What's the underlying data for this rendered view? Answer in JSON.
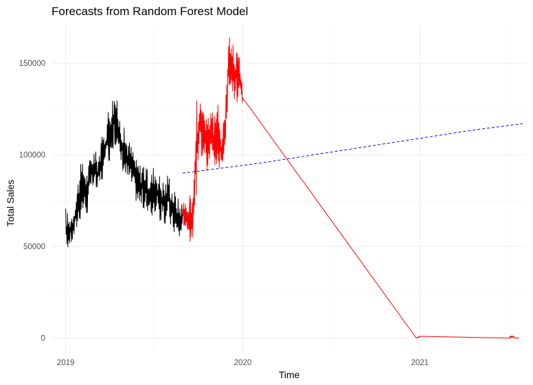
{
  "chart_data": {
    "type": "line",
    "title": "Forecasts from Random Forest Model",
    "xlabel": "Time",
    "ylabel": "Total Sales",
    "xlim": [
      2018.92,
      2021.6
    ],
    "ylim": [
      -8000,
      171000
    ],
    "x_ticks": [
      2019,
      2020,
      2021
    ],
    "x_tick_labels": [
      "2019",
      "2020",
      "2021"
    ],
    "y_ticks": [
      0,
      50000,
      100000,
      150000
    ],
    "y_tick_labels": [
      "0",
      "50000",
      "100000",
      "150000"
    ],
    "grid": true,
    "legend": "none",
    "series": [
      {
        "color": "#000000",
        "style": "solid",
        "x": [
          2019.0,
          2019.02,
          2019.04,
          2019.06,
          2019.08,
          2019.1,
          2019.12,
          2019.14,
          2019.16,
          2019.18,
          2019.2,
          2019.22,
          2019.24,
          2019.26,
          2019.28,
          2019.3,
          2019.32,
          2019.34,
          2019.36,
          2019.38,
          2019.4,
          2019.42,
          2019.44,
          2019.46,
          2019.48,
          2019.5,
          2019.52,
          2019.54,
          2019.56,
          2019.58,
          2019.6,
          2019.62,
          2019.64,
          2019.66
        ],
        "values": [
          60000,
          58000,
          62000,
          70000,
          78000,
          84000,
          80000,
          88000,
          93000,
          90000,
          96000,
          102000,
          110000,
          118000,
          122000,
          112000,
          106000,
          100000,
          98000,
          94000,
          88000,
          84000,
          86000,
          80000,
          78000,
          82000,
          79000,
          76000,
          74000,
          80000,
          72000,
          70000,
          65000,
          68000
        ],
        "ranges": [
          [
            46000,
            72000
          ],
          [
            50000,
            66000
          ],
          [
            52000,
            70000
          ],
          [
            58000,
            80000
          ],
          [
            64000,
            94000
          ],
          [
            68000,
            97000
          ],
          [
            66000,
            92000
          ],
          [
            78000,
            100000
          ],
          [
            82000,
            104000
          ],
          [
            78000,
            100000
          ],
          [
            84000,
            108000
          ],
          [
            88000,
            116000
          ],
          [
            95000,
            126000
          ],
          [
            100000,
            132000
          ],
          [
            106000,
            136000
          ],
          [
            96000,
            124000
          ],
          [
            92000,
            118000
          ],
          [
            86000,
            112000
          ],
          [
            84000,
            108000
          ],
          [
            80000,
            104000
          ],
          [
            74000,
            98000
          ],
          [
            70000,
            96000
          ],
          [
            70000,
            98000
          ],
          [
            66000,
            92000
          ],
          [
            64000,
            90000
          ],
          [
            68000,
            96000
          ],
          [
            66000,
            92000
          ],
          [
            62000,
            88000
          ],
          [
            60000,
            86000
          ],
          [
            64000,
            92000
          ],
          [
            58000,
            84000
          ],
          [
            56000,
            80000
          ],
          [
            52000,
            76000
          ],
          [
            58000,
            74000
          ]
        ]
      },
      {
        "color": "#ff0000",
        "style": "solid",
        "x": [
          2019.66,
          2019.68,
          2019.7,
          2019.72,
          2019.74,
          2019.76,
          2019.78,
          2019.8,
          2019.82,
          2019.84,
          2019.86,
          2019.88,
          2019.9,
          2019.92,
          2019.94,
          2019.96,
          2019.98,
          2020.0,
          2020.98,
          2021.0,
          2021.5,
          2021.52,
          2021.54,
          2021.56
        ],
        "values": [
          70000,
          68000,
          72000,
          70000,
          95000,
          118000,
          112000,
          106000,
          110000,
          100000,
          105000,
          98000,
          108000,
          150000,
          145000,
          142000,
          148000,
          131000,
          0,
          1000,
          0,
          1500,
          0,
          0
        ],
        "ranges": [
          [
            62000,
            76000
          ],
          [
            60000,
            74000
          ],
          [
            48000,
            80000
          ],
          [
            56000,
            80000
          ],
          [
            80000,
            134000
          ],
          [
            100000,
            134000
          ],
          [
            96000,
            130000
          ],
          [
            90000,
            124000
          ],
          [
            94000,
            130000
          ],
          [
            90000,
            122000
          ],
          [
            92000,
            128000
          ],
          [
            90000,
            116000
          ],
          [
            92000,
            130000
          ],
          [
            134000,
            167000
          ],
          [
            130000,
            164000
          ],
          [
            128000,
            160000
          ],
          [
            130000,
            162000
          ],
          [
            126000,
            135000
          ],
          [
            0,
            0
          ],
          [
            0,
            1500
          ],
          [
            0,
            0
          ],
          [
            0,
            2000
          ],
          [
            0,
            0
          ],
          [
            0,
            0
          ]
        ]
      },
      {
        "color": "#0000ff",
        "style": "dashed",
        "x": [
          2019.66,
          2019.9,
          2020.1,
          2020.3,
          2020.5,
          2020.7,
          2020.9,
          2021.1,
          2021.3,
          2021.58
        ],
        "values": [
          90000,
          93000,
          95500,
          98500,
          101500,
          104500,
          107500,
          110500,
          113500,
          117000
        ]
      }
    ]
  }
}
